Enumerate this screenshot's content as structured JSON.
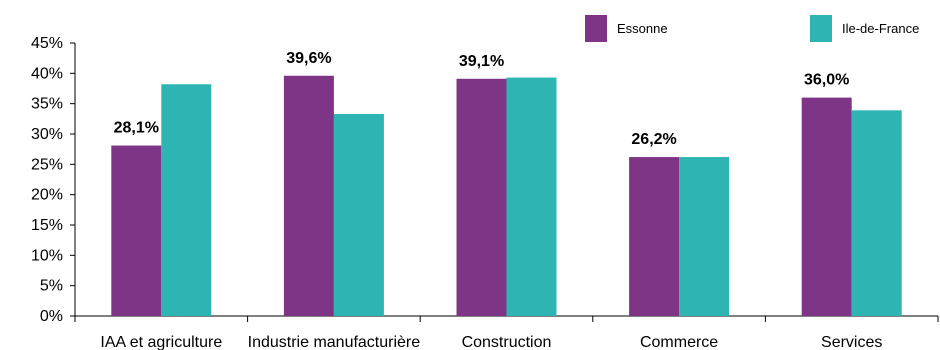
{
  "chart_data": {
    "type": "bar",
    "categories": [
      "IAA et agriculture",
      "Industrie manufacturière",
      "Construction",
      "Commerce",
      "Services"
    ],
    "series": [
      {
        "name": "Essonne",
        "color": "#7f3586",
        "values": [
          28.1,
          39.6,
          39.1,
          26.2,
          36.0
        ]
      },
      {
        "name": "Ile-de-France",
        "color": "#2eb5b3",
        "values": [
          38.2,
          33.3,
          39.3,
          26.2,
          33.9
        ]
      }
    ],
    "data_labels": [
      "28,1%",
      "39,6%",
      "39,1%",
      "26,2%",
      "36,0%"
    ],
    "y_ticks": [
      "0%",
      "5%",
      "10%",
      "15%",
      "20%",
      "25%",
      "30%",
      "35%",
      "40%",
      "45%"
    ],
    "ylim": [
      0,
      45
    ],
    "legend_position": "top-right",
    "grid": false
  }
}
